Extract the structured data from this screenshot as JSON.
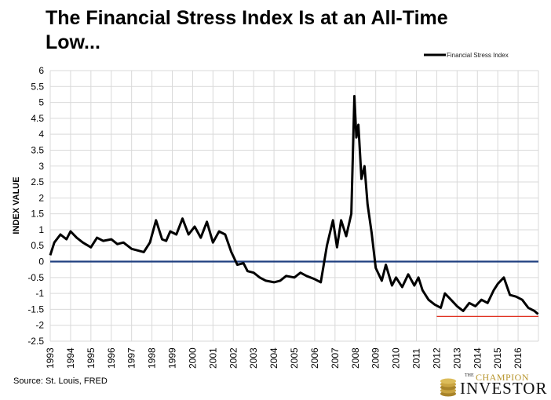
{
  "title": "The Financial Stress Index Is at an All-Time Low...",
  "source": "Source: St. Louis, FRED",
  "logo": {
    "the": "THE",
    "champion": "CHAMPION",
    "investor": "INVESTOR"
  },
  "colors": {
    "series": "#000000",
    "zero_line": "#1f3f7f",
    "low_line": "#e03020",
    "grid": "#d9d9d9",
    "logo_gold": "#b8962e"
  },
  "chart_data": {
    "type": "line",
    "title": "The Financial Stress Index Is at an All-Time Low...",
    "xlabel": "",
    "ylabel": "INDEX VALUE",
    "ylim": [
      -2.5,
      6
    ],
    "xlim": [
      1993,
      2017
    ],
    "y_ticks": [
      "6",
      "5.5",
      "5",
      "4.5",
      "4",
      "3.5",
      "3",
      "2.5",
      "2",
      "1.5",
      "1",
      "0.5",
      "0",
      "-0.5",
      "-1",
      "-1.5",
      "-2",
      "-2.5"
    ],
    "x_ticks": [
      "1993",
      "1994",
      "1995",
      "1996",
      "1997",
      "1998",
      "1999",
      "2000",
      "2001",
      "2002",
      "2003",
      "2004",
      "2005",
      "2006",
      "2007",
      "2008",
      "2009",
      "2010",
      "2011",
      "2012",
      "2013",
      "2014",
      "2015",
      "2016"
    ],
    "grid": true,
    "legend": "top-right",
    "series": [
      {
        "name": "Financial Stress Index",
        "x": [
          1993.0,
          1993.2,
          1993.5,
          1993.8,
          1994.0,
          1994.3,
          1994.6,
          1995.0,
          1995.3,
          1995.6,
          1996.0,
          1996.3,
          1996.6,
          1997.0,
          1997.3,
          1997.6,
          1997.9,
          1998.2,
          1998.5,
          1998.7,
          1998.9,
          1999.2,
          1999.5,
          1999.8,
          2000.1,
          2000.4,
          2000.7,
          2001.0,
          2001.3,
          2001.6,
          2001.9,
          2002.2,
          2002.5,
          2002.7,
          2003.0,
          2003.3,
          2003.6,
          2004.0,
          2004.3,
          2004.6,
          2005.0,
          2005.3,
          2005.6,
          2006.0,
          2006.3,
          2006.6,
          2006.9,
          2007.1,
          2007.3,
          2007.55,
          2007.8,
          2007.95,
          2008.05,
          2008.15,
          2008.3,
          2008.45,
          2008.6,
          2008.8,
          2009.0,
          2009.3,
          2009.5,
          2009.8,
          2010.0,
          2010.3,
          2010.6,
          2010.9,
          2011.1,
          2011.3,
          2011.6,
          2011.9,
          2012.2,
          2012.4,
          2012.7,
          2013.0,
          2013.3,
          2013.6,
          2013.9,
          2014.2,
          2014.5,
          2014.8,
          2015.0,
          2015.3,
          2015.6,
          2015.9,
          2016.2,
          2016.5,
          2016.8,
          2016.98
        ],
        "values": [
          0.2,
          0.6,
          0.85,
          0.7,
          0.95,
          0.75,
          0.6,
          0.45,
          0.75,
          0.65,
          0.7,
          0.55,
          0.6,
          0.4,
          0.35,
          0.3,
          0.6,
          1.3,
          0.7,
          0.65,
          0.95,
          0.85,
          1.35,
          0.85,
          1.1,
          0.75,
          1.25,
          0.6,
          0.95,
          0.85,
          0.3,
          -0.1,
          -0.05,
          -0.3,
          -0.35,
          -0.5,
          -0.6,
          -0.65,
          -0.6,
          -0.45,
          -0.5,
          -0.35,
          -0.45,
          -0.55,
          -0.65,
          0.5,
          1.3,
          0.45,
          1.3,
          0.8,
          1.5,
          5.2,
          3.9,
          4.3,
          2.6,
          3.0,
          1.8,
          0.9,
          -0.2,
          -0.6,
          -0.1,
          -0.75,
          -0.5,
          -0.8,
          -0.4,
          -0.75,
          -0.5,
          -0.9,
          -1.2,
          -1.35,
          -1.45,
          -1.0,
          -1.2,
          -1.4,
          -1.55,
          -1.3,
          -1.4,
          -1.2,
          -1.3,
          -0.9,
          -0.7,
          -0.5,
          -1.05,
          -1.1,
          -1.2,
          -1.45,
          -1.55,
          -1.65
        ]
      }
    ],
    "reference_lines": [
      {
        "y": 0
      },
      {
        "y": -1.72,
        "x_start": 2012.0,
        "x_end": 2017.0
      }
    ]
  }
}
